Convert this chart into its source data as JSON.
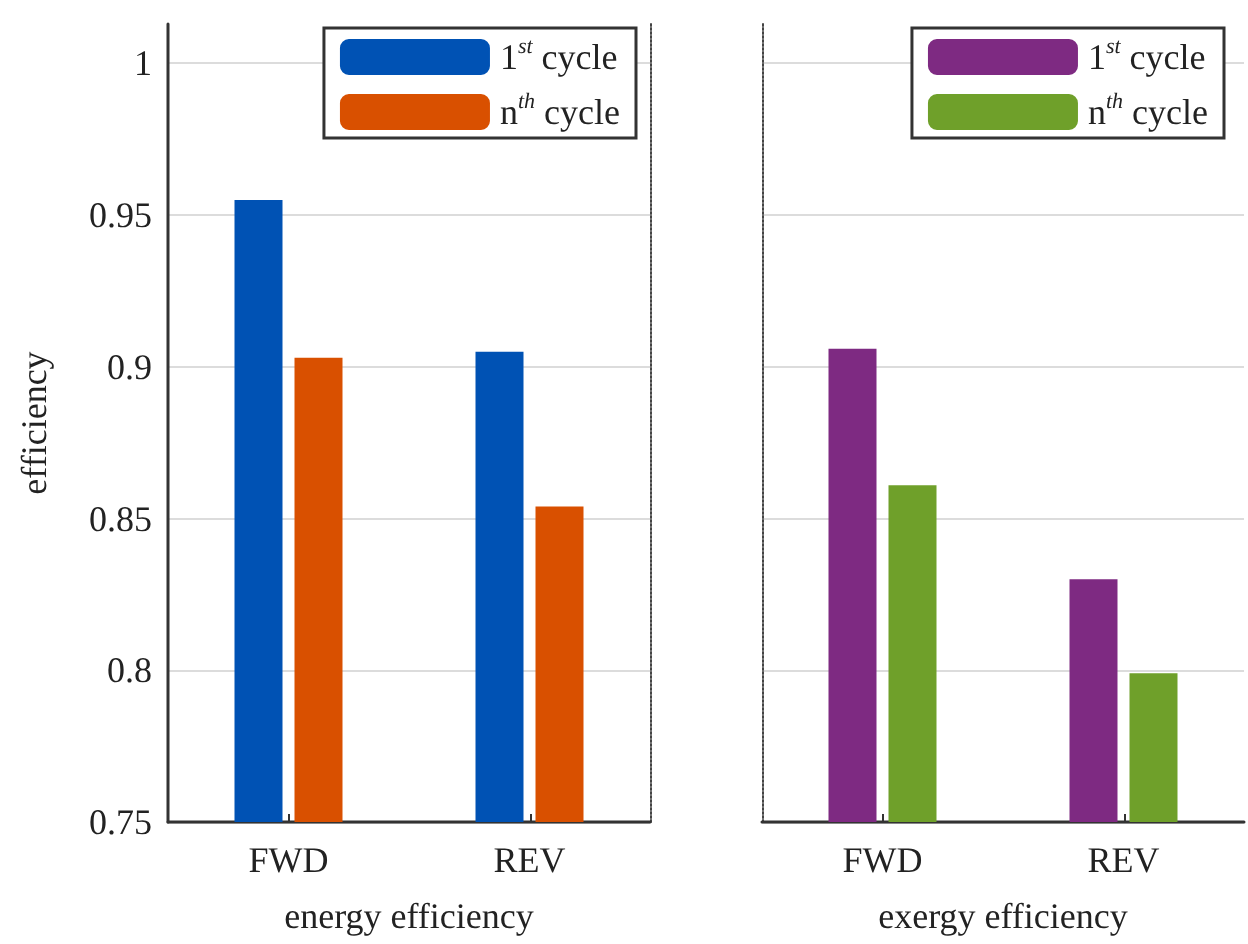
{
  "chart_data": [
    {
      "type": "bar",
      "ylabel": "efficiency",
      "xlabel": "energy efficiency",
      "categories": [
        "FWD",
        "REV"
      ],
      "series": [
        {
          "name": "1$^{st}$ cycle",
          "color": "#0052b4",
          "values": [
            0.955,
            0.905
          ]
        },
        {
          "name": "n$^{th}$ cycle",
          "color": "#d95000",
          "values": [
            0.903,
            0.854
          ]
        }
      ],
      "ylim": [
        0.75,
        1.013
      ],
      "yticks": [
        0.75,
        0.8,
        0.85,
        0.9,
        0.95,
        1
      ],
      "grid": "y",
      "legend": "top right"
    },
    {
      "type": "bar",
      "xlabel": "exergy efficiency",
      "categories": [
        "FWD",
        "REV"
      ],
      "series": [
        {
          "name": "1$^{st}$ cycle",
          "color": "#7e2a82",
          "values": [
            0.906,
            0.83
          ]
        },
        {
          "name": "n$^{th}$ cycle",
          "color": "#6fa02a",
          "values": [
            0.861,
            0.799
          ]
        }
      ],
      "ylim": [
        0.75,
        1.013
      ],
      "yticks": [
        0.75,
        0.8,
        0.85,
        0.9,
        0.95,
        1
      ],
      "grid": "y",
      "legend": "top right",
      "tick_labels": "x"
    }
  ]
}
